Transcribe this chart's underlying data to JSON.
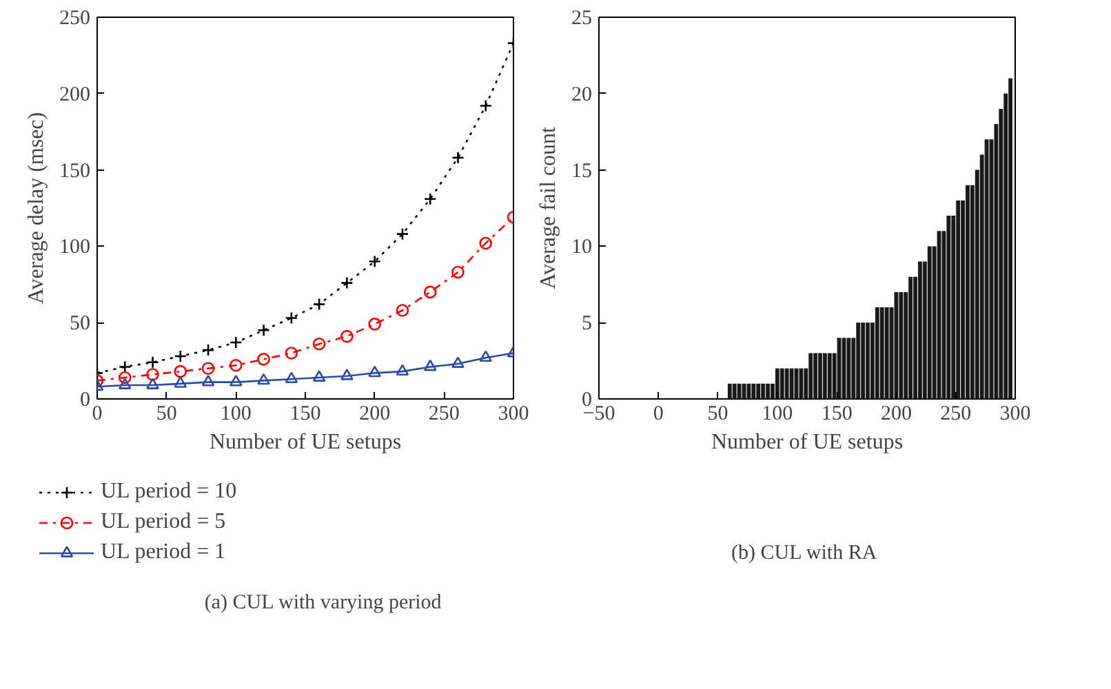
{
  "chart_data": [
    {
      "type": "line",
      "xlabel": "Number of UE setups",
      "ylabel": "Average delay (msec)",
      "annotations": [
        "(a)  CUL with varying period"
      ],
      "x": [
        0,
        20,
        40,
        60,
        80,
        100,
        120,
        140,
        160,
        180,
        200,
        220,
        240,
        260,
        280,
        300
      ],
      "series": [
        {
          "name": "UL period = 10",
          "color": "#000000",
          "marker": "cross",
          "line_style": "dotted",
          "values": [
            17,
            21,
            24,
            28,
            32,
            37,
            45,
            53,
            62,
            76,
            90,
            108,
            131,
            158,
            192,
            233
          ]
        },
        {
          "name": "UL period = 5",
          "color": "#ff0000",
          "marker": "circle",
          "line_style": "dashed",
          "values": [
            12,
            14,
            16,
            18,
            20,
            22,
            26,
            30,
            36,
            41,
            49,
            58,
            70,
            83,
            102,
            119
          ]
        },
        {
          "name": "UL period = 1",
          "color": "#2b4ba8",
          "marker": "triangle",
          "line_style": "solid",
          "values": [
            8,
            9,
            9,
            10,
            11,
            11,
            12,
            13,
            14,
            15,
            17,
            18,
            21,
            23,
            27,
            30
          ]
        }
      ],
      "xlim": [
        0,
        300
      ],
      "ylim": [
        0,
        250
      ],
      "xticks": [
        0,
        50,
        100,
        150,
        200,
        250,
        300
      ],
      "yticks": [
        0,
        50,
        100,
        150,
        200,
        250
      ],
      "grid": false,
      "legend": "bottom"
    },
    {
      "type": "bar",
      "xlabel": "Number of UE setups",
      "ylabel": "Average fail count",
      "annotations": [
        "(b)  CUL with RA"
      ],
      "color": "#1a1a1a",
      "x": [
        60,
        64,
        68,
        72,
        76,
        80,
        84,
        88,
        92,
        96,
        100,
        104,
        108,
        112,
        116,
        120,
        124,
        128,
        132,
        136,
        140,
        144,
        148,
        152,
        156,
        160,
        164,
        168,
        172,
        176,
        180,
        184,
        188,
        192,
        196,
        200,
        204,
        208,
        212,
        216,
        220,
        224,
        228,
        232,
        236,
        240,
        244,
        248,
        252,
        256,
        260,
        264,
        268,
        272,
        276,
        280,
        284,
        288,
        292,
        296
      ],
      "values": [
        1,
        1,
        1,
        1,
        1,
        1,
        1,
        1,
        1,
        1,
        2,
        2,
        2,
        2,
        2,
        2,
        2,
        3,
        3,
        3,
        3,
        3,
        3,
        4,
        4,
        4,
        4,
        5,
        5,
        5,
        5,
        6,
        6,
        6,
        6,
        7,
        7,
        7,
        8,
        8,
        9,
        9,
        10,
        10,
        11,
        11,
        12,
        12,
        13,
        13,
        14,
        14,
        15,
        16,
        17,
        17,
        18,
        19,
        20,
        21
      ],
      "xlim": [
        -50,
        300
      ],
      "ylim": [
        0,
        25
      ],
      "xticks": [
        -50,
        0,
        50,
        100,
        150,
        200,
        250,
        300
      ],
      "yticks": [
        0,
        5,
        10,
        15,
        20,
        25
      ],
      "grid": false
    }
  ]
}
